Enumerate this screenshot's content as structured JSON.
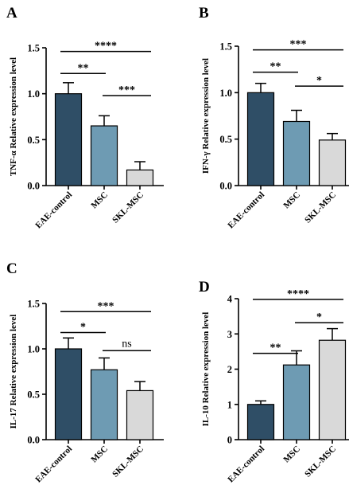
{
  "colors": {
    "eae_control": "#2f4e66",
    "msc": "#6e9bb3",
    "skl_msc": "#d9d9d9",
    "outline": "#000000"
  },
  "chart_data": [
    {
      "type": "bar",
      "panel": "A",
      "ylabel": "TNF-α Relative expression level",
      "categories": [
        "EAE-control",
        "MSC",
        "SKL-MSC"
      ],
      "values": [
        1.0,
        0.65,
        0.17
      ],
      "errors": [
        0.12,
        0.11,
        0.09
      ],
      "ylim": [
        0,
        1.5
      ],
      "yticks": [
        0.0,
        0.5,
        1.0,
        1.5
      ],
      "ytick_labels": [
        "0.0",
        "0.5",
        "1.0",
        "1.5"
      ],
      "significance": [
        {
          "from": 0,
          "to": 1,
          "label": "**",
          "y": 1.22
        },
        {
          "from": 1,
          "to": 2,
          "label": "***",
          "y": 0.98
        },
        {
          "from": 0,
          "to": 2,
          "label": "****",
          "y": 1.46
        }
      ]
    },
    {
      "type": "bar",
      "panel": "B",
      "ylabel": "IFN-γ Relative expression level",
      "categories": [
        "EAE-control",
        "MSC",
        "SKL-MSC"
      ],
      "values": [
        1.0,
        0.69,
        0.49
      ],
      "errors": [
        0.1,
        0.12,
        0.07
      ],
      "ylim": [
        0,
        1.5
      ],
      "yticks": [
        0.0,
        0.5,
        1.0,
        1.5
      ],
      "ytick_labels": [
        "0.0",
        "0.5",
        "1.0",
        "1.5"
      ],
      "significance": [
        {
          "from": 0,
          "to": 1,
          "label": "**",
          "y": 1.22
        },
        {
          "from": 1,
          "to": 2,
          "label": "*",
          "y": 1.07
        },
        {
          "from": 0,
          "to": 2,
          "label": "***",
          "y": 1.46
        }
      ]
    },
    {
      "type": "bar",
      "panel": "C",
      "ylabel": "IL-17 Relative expression level",
      "categories": [
        "EAE-control",
        "MSC",
        "SKL-MSC"
      ],
      "values": [
        1.0,
        0.77,
        0.54
      ],
      "errors": [
        0.12,
        0.13,
        0.1
      ],
      "ylim": [
        0,
        1.5
      ],
      "yticks": [
        0.0,
        0.5,
        1.0,
        1.5
      ],
      "ytick_labels": [
        "0.0",
        "0.5",
        "1.0",
        "1.5"
      ],
      "significance": [
        {
          "from": 0,
          "to": 1,
          "label": "*",
          "y": 1.18
        },
        {
          "from": 1,
          "to": 2,
          "label": "ns",
          "y": 0.98
        },
        {
          "from": 0,
          "to": 2,
          "label": "***",
          "y": 1.41
        }
      ]
    },
    {
      "type": "bar",
      "panel": "D",
      "ylabel": "IL-10 Relative expression level",
      "categories": [
        "EAE-control",
        "MSC",
        "SKL-MSC"
      ],
      "values": [
        1.0,
        2.12,
        2.82
      ],
      "errors": [
        0.1,
        0.4,
        0.33
      ],
      "ylim": [
        0,
        4
      ],
      "yticks": [
        0,
        1,
        2,
        3,
        4
      ],
      "ytick_labels": [
        "0",
        "1",
        "2",
        "3",
        "4"
      ],
      "significance": [
        {
          "from": 0,
          "to": 1,
          "label": "**",
          "y": 2.45
        },
        {
          "from": 1,
          "to": 2,
          "label": "*",
          "y": 3.32
        },
        {
          "from": 0,
          "to": 2,
          "label": "****",
          "y": 3.98
        }
      ]
    }
  ]
}
